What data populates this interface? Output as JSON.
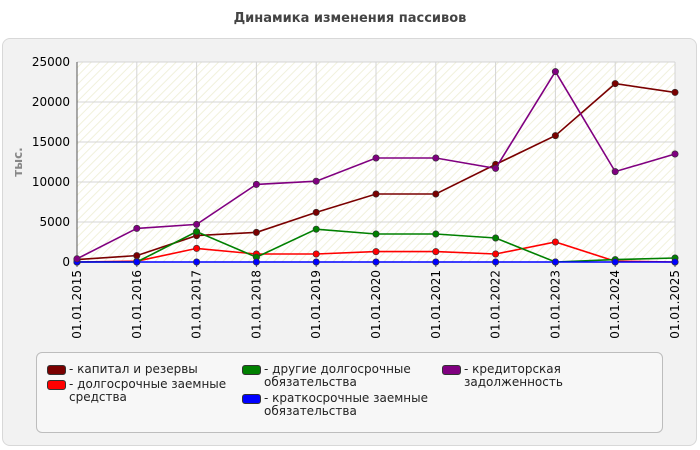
{
  "title": "Динамика изменения пассивов",
  "chart_data": {
    "type": "line",
    "title": "Динамика изменения пассивов",
    "xlabel": "",
    "ylabel": "тыс.",
    "ylim": [
      0,
      25000
    ],
    "yticks": [
      0,
      5000,
      10000,
      15000,
      20000,
      25000
    ],
    "grid": true,
    "legend_position": "bottom",
    "categories": [
      "01.01.2015",
      "01.01.2016",
      "01.01.2017",
      "01.01.2018",
      "01.01.2019",
      "01.01.2020",
      "01.01.2021",
      "01.01.2022",
      "01.01.2023",
      "01.01.2024",
      "01.01.2025"
    ],
    "series": [
      {
        "name": "капитал и резервы",
        "color": "#7a0000",
        "values": [
          300,
          800,
          3300,
          3700,
          6200,
          8500,
          8500,
          12200,
          15800,
          22300,
          21200
        ]
      },
      {
        "name": "долгосрочные заемные средства",
        "color": "#ff0000",
        "values": [
          0,
          100,
          1700,
          1000,
          1000,
          1300,
          1300,
          1000,
          2500,
          100,
          0
        ]
      },
      {
        "name": "другие долгосрочные обязательства",
        "color": "#008000",
        "values": [
          0,
          0,
          3800,
          600,
          4100,
          3500,
          3500,
          3000,
          0,
          300,
          500
        ]
      },
      {
        "name": "краткосрочные заемные обязательства",
        "color": "#0000ff",
        "values": [
          0,
          0,
          0,
          0,
          0,
          0,
          0,
          0,
          0,
          0,
          0
        ]
      },
      {
        "name": "кредиторская задолженность",
        "color": "#800080",
        "values": [
          400,
          4200,
          4700,
          9700,
          10100,
          13000,
          13000,
          11700,
          23800,
          11300,
          13500
        ]
      }
    ]
  }
}
